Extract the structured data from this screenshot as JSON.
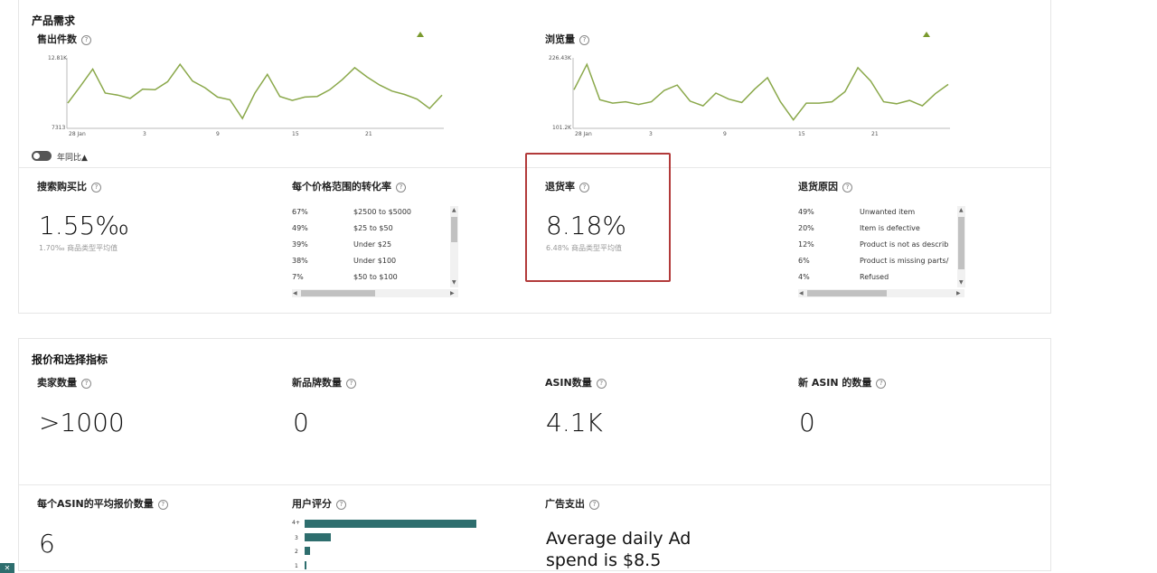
{
  "product_demand": {
    "title": "产品需求",
    "units_sold": {
      "title": "售出件数",
      "y_max_label": "12.81K",
      "y_min_label": "7313",
      "x_labels": [
        "28 Jan",
        "3",
        "9",
        "15",
        "21"
      ],
      "trend": "up",
      "series": [
        0.35,
        0.6,
        0.86,
        0.5,
        0.47,
        0.42,
        0.56,
        0.55,
        0.67,
        0.93,
        0.68,
        0.58,
        0.44,
        0.4,
        0.12,
        0.5,
        0.78,
        0.45,
        0.39,
        0.44,
        0.45,
        0.55,
        0.7,
        0.88,
        0.74,
        0.62,
        0.53,
        0.48,
        0.41,
        0.27,
        0.47
      ]
    },
    "page_views": {
      "title": "浏览量",
      "y_max_label": "226.43K",
      "y_min_label": "101.2K",
      "x_labels": [
        "28 Jan",
        "3",
        "9",
        "15",
        "21"
      ],
      "trend": "up",
      "series": [
        0.55,
        0.93,
        0.4,
        0.35,
        0.37,
        0.33,
        0.37,
        0.54,
        0.62,
        0.38,
        0.31,
        0.5,
        0.41,
        0.36,
        0.56,
        0.73,
        0.37,
        0.1,
        0.35,
        0.35,
        0.37,
        0.52,
        0.88,
        0.68,
        0.37,
        0.34,
        0.39,
        0.31,
        0.49,
        0.63
      ]
    },
    "toggle_label": "年同比▲",
    "search_purchase_ratio": {
      "title": "搜索购买比",
      "value": "1.55‰",
      "sub": "1.70‰ 商品类型平均值"
    },
    "conversion_by_price": {
      "title": "每个价格范围的转化率",
      "rows": [
        {
          "pct": "67%",
          "label": "$2500 to $5000"
        },
        {
          "pct": "49%",
          "label": "$25 to $50"
        },
        {
          "pct": "39%",
          "label": "Under $25"
        },
        {
          "pct": "38%",
          "label": "Under $100"
        },
        {
          "pct": "7%",
          "label": "$50 to $100"
        }
      ]
    },
    "return_rate": {
      "title": "退货率",
      "value": "8.18%",
      "sub": "6.48% 商品类型平均值"
    },
    "return_reasons": {
      "title": "退货原因",
      "rows": [
        {
          "pct": "49%",
          "label": "Unwanted item"
        },
        {
          "pct": "20%",
          "label": "Item is defective"
        },
        {
          "pct": "12%",
          "label": "Product is not as describ"
        },
        {
          "pct": "6%",
          "label": "Product is missing parts/"
        },
        {
          "pct": "4%",
          "label": "Refused"
        }
      ]
    }
  },
  "offers": {
    "title": "报价和选择指标",
    "sellers": {
      "title": "卖家数量",
      "value": ">1000"
    },
    "new_brands": {
      "title": "新品牌数量",
      "value": "0"
    },
    "asin_count": {
      "title": "ASIN数量",
      "value": "4.1K"
    },
    "new_asin_count": {
      "title": "新 ASIN 的数量",
      "value": "0"
    },
    "avg_offers": {
      "title": "每个ASIN的平均报价数量",
      "value": "6"
    },
    "ratings": {
      "title": "用户评分",
      "bars": [
        {
          "label": "4+",
          "fraction": 1.0
        },
        {
          "label": "3",
          "fraction": 0.15
        },
        {
          "label": "2",
          "fraction": 0.03
        },
        {
          "label": "1",
          "fraction": 0.01
        }
      ]
    },
    "ad_spend": {
      "title": "广告支出",
      "line1": "Average daily Ad",
      "line2": "spend is $8.5"
    }
  },
  "colors": {
    "line": "#8aa84a",
    "accent": "#7a9a2e",
    "highlight": "#b23a3a",
    "bar": "#2e6e6e"
  }
}
